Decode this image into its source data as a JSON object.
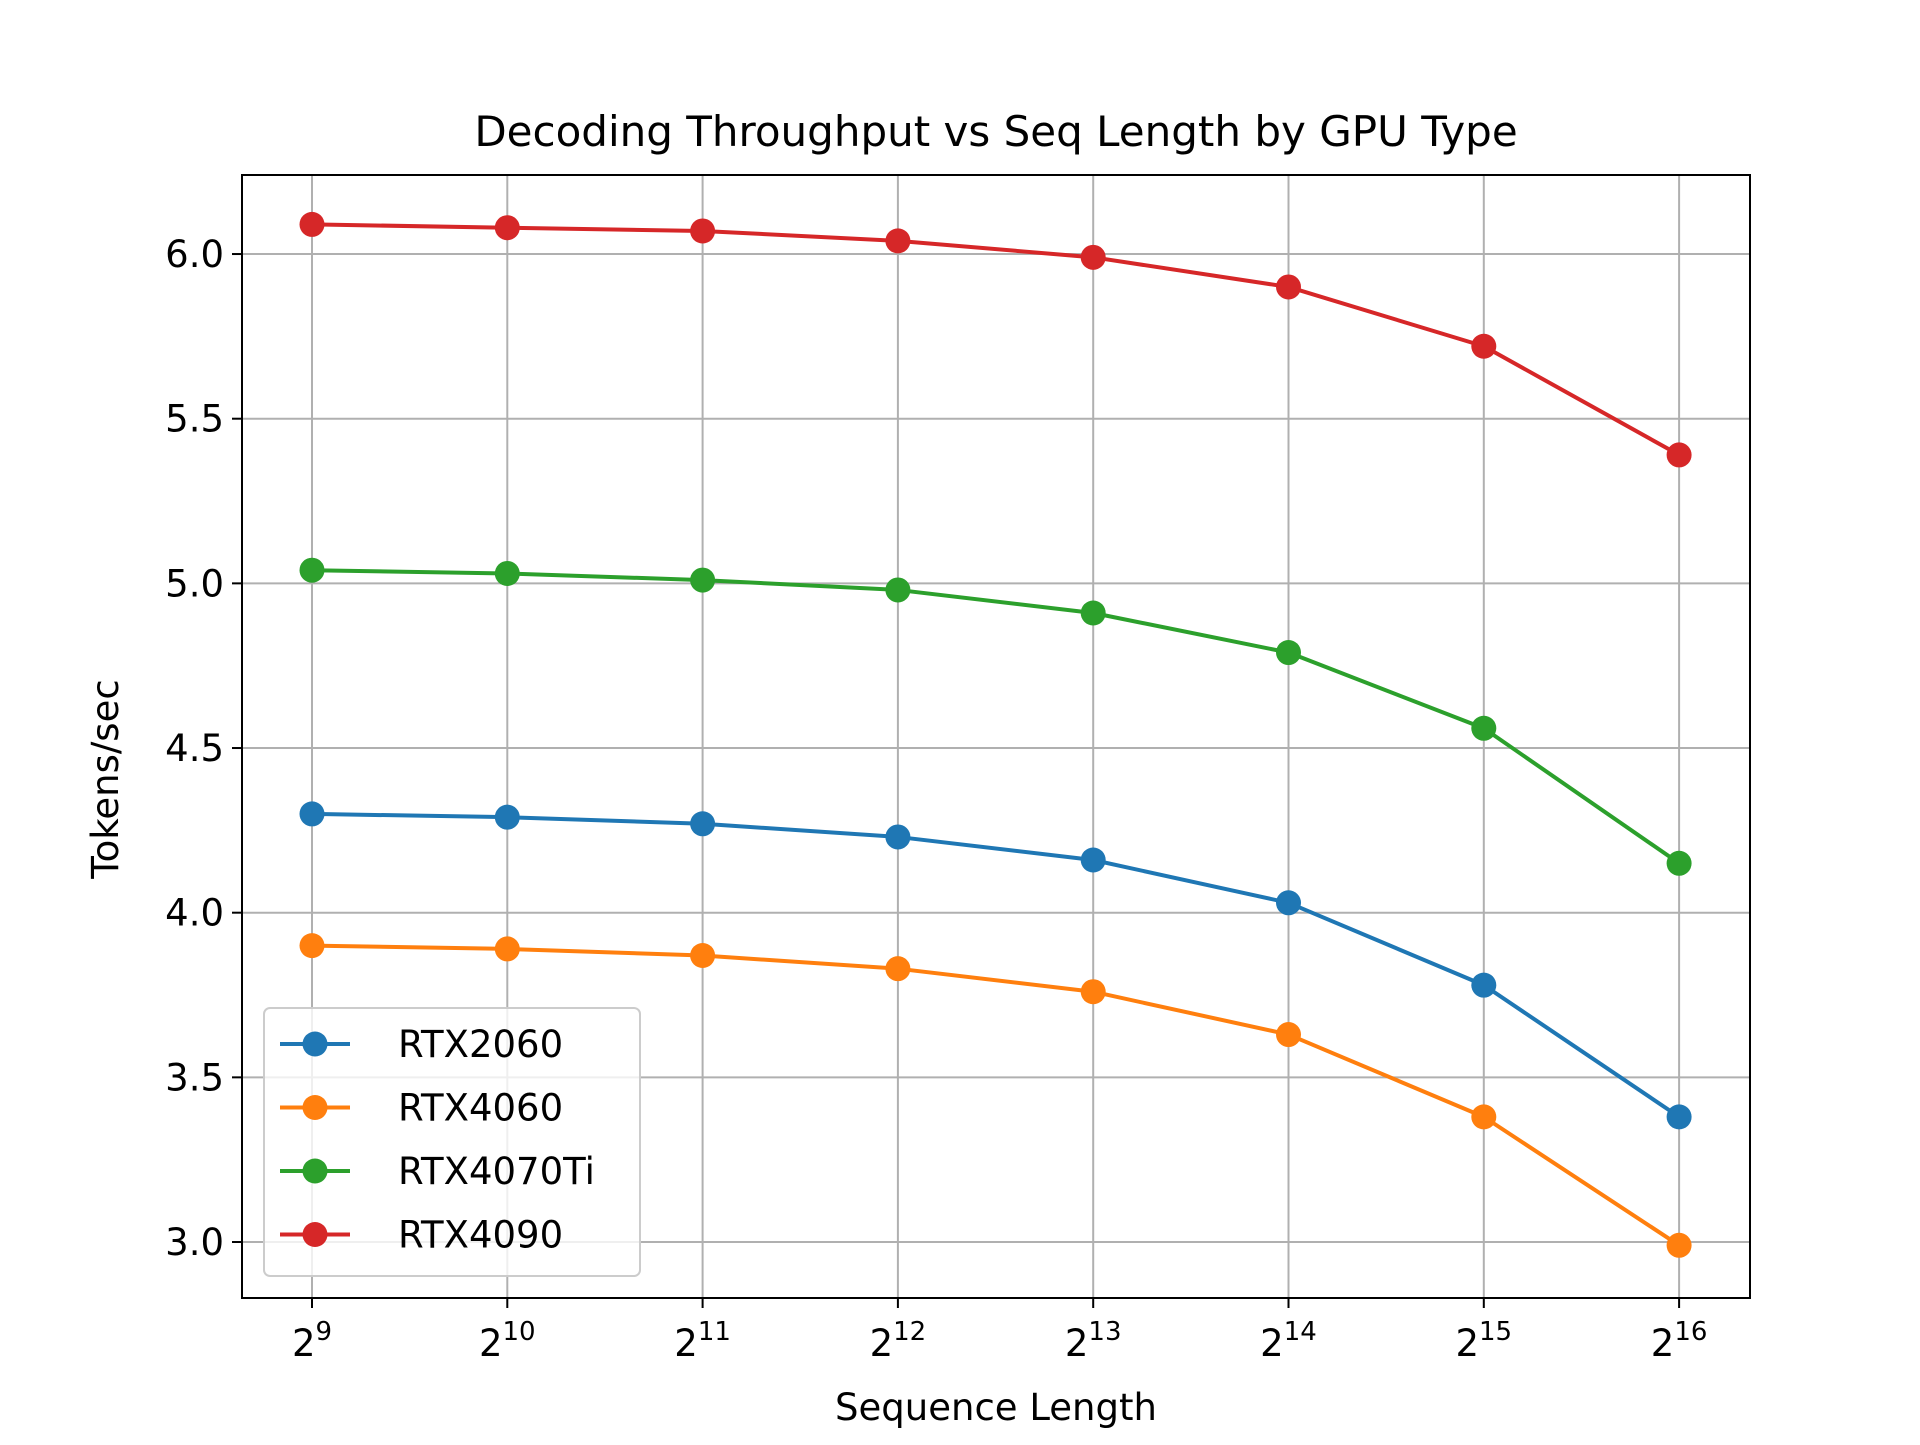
{
  "chart_data": {
    "type": "line",
    "title": "Decoding Throughput vs Seq Length by GPU Type",
    "xlabel": "Sequence Length",
    "ylabel": "Tokens/sec",
    "x_scale": "log2",
    "x": [
      512,
      1024,
      2048,
      4096,
      8192,
      16384,
      32768,
      65536
    ],
    "x_tick_labels": [
      {
        "base": "2",
        "exp": "9"
      },
      {
        "base": "2",
        "exp": "10"
      },
      {
        "base": "2",
        "exp": "11"
      },
      {
        "base": "2",
        "exp": "12"
      },
      {
        "base": "2",
        "exp": "13"
      },
      {
        "base": "2",
        "exp": "14"
      },
      {
        "base": "2",
        "exp": "15"
      },
      {
        "base": "2",
        "exp": "16"
      }
    ],
    "ylim": [
      2.83,
      6.24
    ],
    "y_ticks": [
      "3.0",
      "3.5",
      "4.0",
      "4.5",
      "5.0",
      "5.5",
      "6.0"
    ],
    "grid": true,
    "legend_position": "lower-left",
    "series": [
      {
        "name": "RTX2060",
        "color": "#1f77b4",
        "values": [
          4.3,
          4.29,
          4.27,
          4.23,
          4.16,
          4.03,
          3.78,
          3.38
        ]
      },
      {
        "name": "RTX4060",
        "color": "#ff7f0e",
        "values": [
          3.9,
          3.89,
          3.87,
          3.83,
          3.76,
          3.63,
          3.38,
          2.99
        ]
      },
      {
        "name": "RTX4070Ti",
        "color": "#2ca02c",
        "values": [
          5.04,
          5.03,
          5.01,
          4.98,
          4.91,
          4.79,
          4.56,
          4.15
        ]
      },
      {
        "name": "RTX4090",
        "color": "#d62728",
        "values": [
          6.09,
          6.08,
          6.07,
          6.04,
          5.99,
          5.9,
          5.72,
          5.39
        ]
      }
    ]
  }
}
